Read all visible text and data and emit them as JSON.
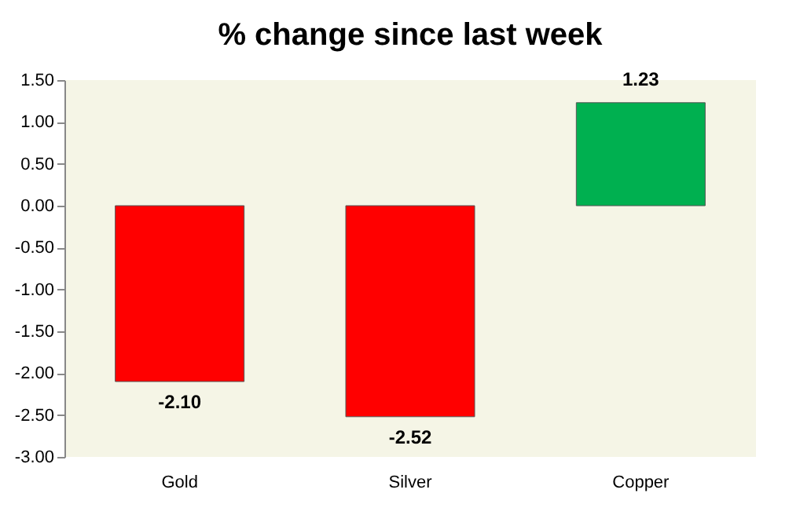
{
  "chart_data": {
    "type": "bar",
    "title": "% change since last week",
    "categories": [
      "Gold",
      "Silver",
      "Copper"
    ],
    "values": [
      -2.1,
      -2.52,
      1.23
    ],
    "colors": [
      "#ff0000",
      "#ff0000",
      "#00b050"
    ],
    "value_labels": [
      "-2.10",
      "-2.52",
      "1.23"
    ],
    "ylim": [
      -3.0,
      1.5
    ],
    "yticks": [
      {
        "value": -3.0,
        "label": "-3.00"
      },
      {
        "value": -2.5,
        "label": "-2.50"
      },
      {
        "value": -2.0,
        "label": "-2.00"
      },
      {
        "value": -1.5,
        "label": "-1.50"
      },
      {
        "value": -1.0,
        "label": "-1.00"
      },
      {
        "value": -0.5,
        "label": "-0.50"
      },
      {
        "value": 0.0,
        "label": "0.00"
      },
      {
        "value": 0.5,
        "label": "0.50"
      },
      {
        "value": 1.0,
        "label": "1.00"
      },
      {
        "value": 1.5,
        "label": "1.50"
      }
    ],
    "grid": false
  }
}
